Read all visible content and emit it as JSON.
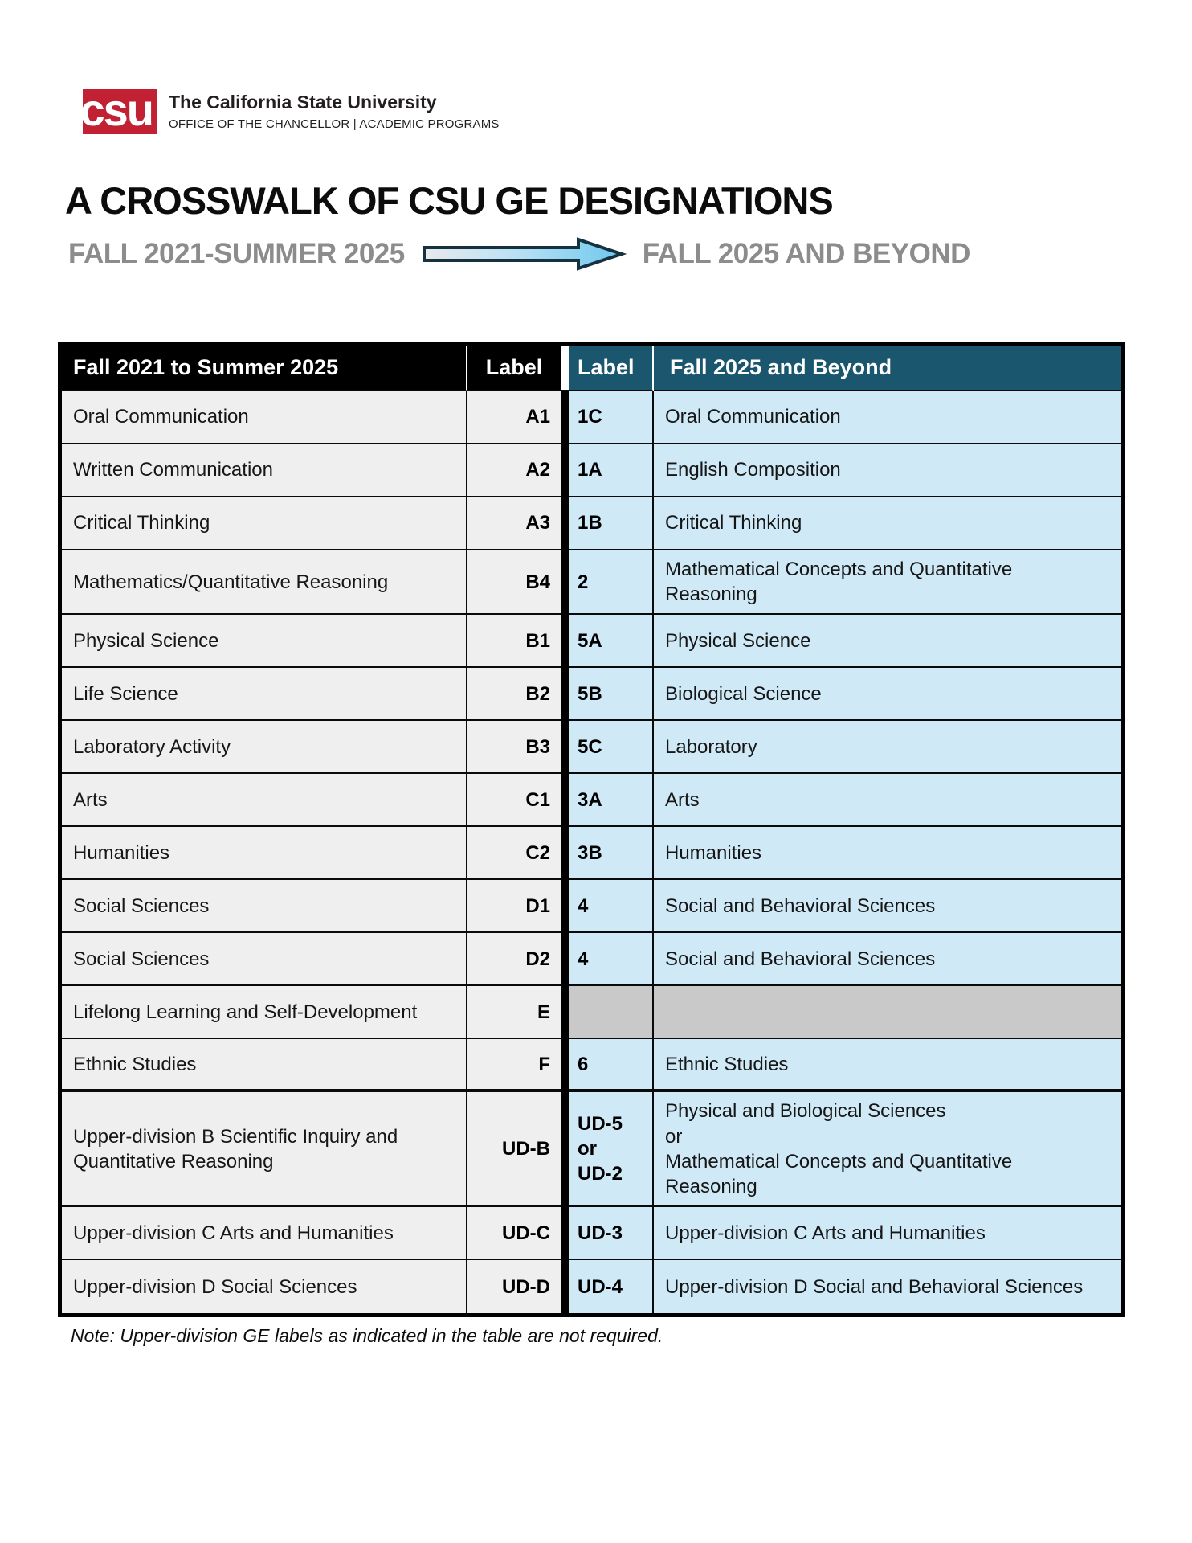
{
  "brand": {
    "logo_text": "csu",
    "name": "The California State University",
    "office": "OFFICE OF THE CHANCELLOR | ACADEMIC PROGRAMS"
  },
  "header": {
    "title": "A CROSSWALK OF CSU GE DESIGNATIONS",
    "period_from": "FALL 2021-SUMMER 2025",
    "period_to": "FALL 2025 AND BEYOND",
    "arrow_icon": "right-arrow"
  },
  "table": {
    "col_headers": {
      "old_desc": "Fall 2021 to Summer 2025",
      "old_label": "Label",
      "new_label": "Label",
      "new_desc": "Fall 2025 and Beyond"
    },
    "rows": [
      {
        "old": "Oral Communication",
        "old_label": "A1",
        "new_label": "1C",
        "new": "Oral Communication"
      },
      {
        "old": "Written Communication",
        "old_label": "A2",
        "new_label": "1A",
        "new": "English Composition"
      },
      {
        "old": "Critical Thinking",
        "old_label": "A3",
        "new_label": "1B",
        "new": "Critical Thinking"
      },
      {
        "old": "Mathematics/Quantitative Reasoning",
        "old_label": "B4",
        "new_label": "2",
        "new": "Mathematical Concepts and Quantitative\nReasoning"
      },
      {
        "old": "Physical Science",
        "old_label": "B1",
        "new_label": "5A",
        "new": "Physical Science"
      },
      {
        "old": "Life Science",
        "old_label": "B2",
        "new_label": "5B",
        "new": "Biological Science"
      },
      {
        "old": "Laboratory Activity",
        "old_label": "B3",
        "new_label": "5C",
        "new": "Laboratory"
      },
      {
        "old": "Arts",
        "old_label": "C1",
        "new_label": "3A",
        "new": "Arts"
      },
      {
        "old": "Humanities",
        "old_label": "C2",
        "new_label": "3B",
        "new": "Humanities"
      },
      {
        "old": "Social Sciences",
        "old_label": "D1",
        "new_label": "4",
        "new": "Social and Behavioral Sciences"
      },
      {
        "old": "Social Sciences",
        "old_label": "D2",
        "new_label": "4",
        "new": "Social and Behavioral Sciences"
      },
      {
        "old": "Lifelong Learning and Self-Development",
        "old_label": "E",
        "new_label": "",
        "new": "",
        "muted": true
      },
      {
        "old": "Ethnic Studies",
        "old_label": "F",
        "new_label": "6",
        "new": "Ethnic Studies",
        "section_end": true
      },
      {
        "old": "Upper-division B Scientific Inquiry and Quantitative Reasoning",
        "old_label": "UD-B",
        "new_label": "UD-5\nor\nUD-2",
        "new": "Physical and Biological Sciences\nor\nMathematical Concepts and Quantitative\nReasoning"
      },
      {
        "old": "Upper-division C Arts and Humanities",
        "old_label": "UD-C",
        "new_label": "UD-3",
        "new": "Upper-division C Arts and Humanities"
      },
      {
        "old": "Upper-division D Social Sciences",
        "old_label": "UD-D",
        "new_label": "UD-4",
        "new": "Upper-division D Social and Behavioral Sciences"
      }
    ],
    "note": "Note: Upper-division GE labels as indicated in the table are not required."
  },
  "colors": {
    "csu_red": "#c22033",
    "header_black": "#000000",
    "header_teal": "#1b566f",
    "old_cell_bg": "#efefef",
    "new_cell_bg": "#cfe9f7",
    "muted_cell_bg": "#c9c9c9",
    "period_gray": "#8c8c8c",
    "arrow_fill_start": "#e8eaec",
    "arrow_fill_end": "#6fc8ef",
    "arrow_outline": "#16313f"
  }
}
